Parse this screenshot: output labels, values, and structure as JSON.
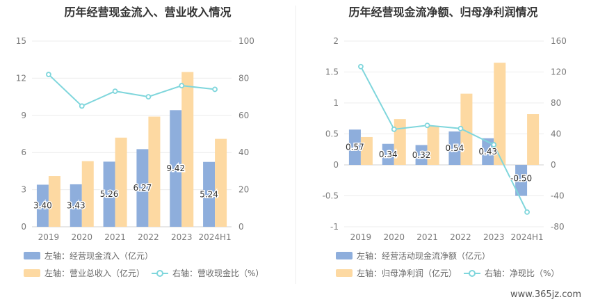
{
  "watermark": "www.365jz.com",
  "colors": {
    "bar_left": "#8eaedc",
    "bar_right": "#fdd9a2",
    "line": "#7fd6dc"
  },
  "charts": [
    {
      "title": "历年经营现金流入、营业收入情况",
      "legend": {
        "bar_left": "左轴：经营现金流入（亿元）",
        "bar_right": "左轴：营业总收入（亿元）",
        "line": "右轴：营收现金比（%）"
      }
    },
    {
      "title": "历年经营现金流净额、归母净利润情况",
      "legend": {
        "bar_left": "左轴：经营活动现金流净额（亿元）",
        "bar_right": "左轴：归母净利润（亿元）",
        "line": "右轴：净现比（%）"
      }
    }
  ],
  "chart_data": [
    {
      "type": "bar",
      "title": "历年经营现金流入、营业收入情况",
      "categories": [
        "2019",
        "2020",
        "2021",
        "2022",
        "2023",
        "2024H1"
      ],
      "left_axis": {
        "min": 0,
        "max": 15,
        "ticks": [
          "0",
          "3",
          "6",
          "9",
          "12",
          "15"
        ]
      },
      "right_axis": {
        "min": 0,
        "max": 100,
        "ticks": [
          "0",
          "20",
          "40",
          "60",
          "80",
          "100"
        ]
      },
      "series": [
        {
          "name": "左轴：经营现金流入（亿元）",
          "axis": "left",
          "kind": "bar",
          "values": [
            3.4,
            3.43,
            5.26,
            6.27,
            9.42,
            5.24
          ],
          "labels": [
            "3.40",
            "3.43",
            "5.26",
            "6.27",
            "9.42",
            "5.24"
          ]
        },
        {
          "name": "左轴：营业总收入（亿元）",
          "axis": "left",
          "kind": "bar",
          "values": [
            4.1,
            5.3,
            7.2,
            8.9,
            12.5,
            7.1
          ]
        },
        {
          "name": "右轴：营收现金比（%）",
          "axis": "right",
          "kind": "line",
          "values": [
            82,
            65,
            73,
            70,
            76,
            74
          ]
        }
      ],
      "grid": true,
      "legend_position": "bottom"
    },
    {
      "type": "bar",
      "title": "历年经营现金流净额、归母净利润情况",
      "categories": [
        "2019",
        "2020",
        "2021",
        "2022",
        "2023",
        "2024H1"
      ],
      "left_axis": {
        "min": -1,
        "max": 2,
        "ticks": [
          "-1",
          "-0.5",
          "0",
          "0.5",
          "1",
          "1.5",
          "2"
        ]
      },
      "right_axis": {
        "min": -80,
        "max": 160,
        "ticks": [
          "-80",
          "-40",
          "0",
          "40",
          "80",
          "120",
          "160"
        ]
      },
      "series": [
        {
          "name": "左轴：经营活动现金流净额（亿元）",
          "axis": "left",
          "kind": "bar",
          "values": [
            0.57,
            0.34,
            0.32,
            0.54,
            0.43,
            -0.5
          ],
          "labels": [
            "0.57",
            "0.34",
            "0.32",
            "0.54",
            "0.43",
            "-0.50"
          ]
        },
        {
          "name": "左轴：归母净利润（亿元）",
          "axis": "left",
          "kind": "bar",
          "values": [
            0.45,
            0.74,
            0.63,
            1.15,
            1.65,
            0.82
          ]
        },
        {
          "name": "右轴：净现比（%）",
          "axis": "right",
          "kind": "line",
          "values": [
            127,
            46,
            51,
            47,
            26,
            -61
          ]
        }
      ],
      "grid": true,
      "legend_position": "bottom"
    }
  ]
}
